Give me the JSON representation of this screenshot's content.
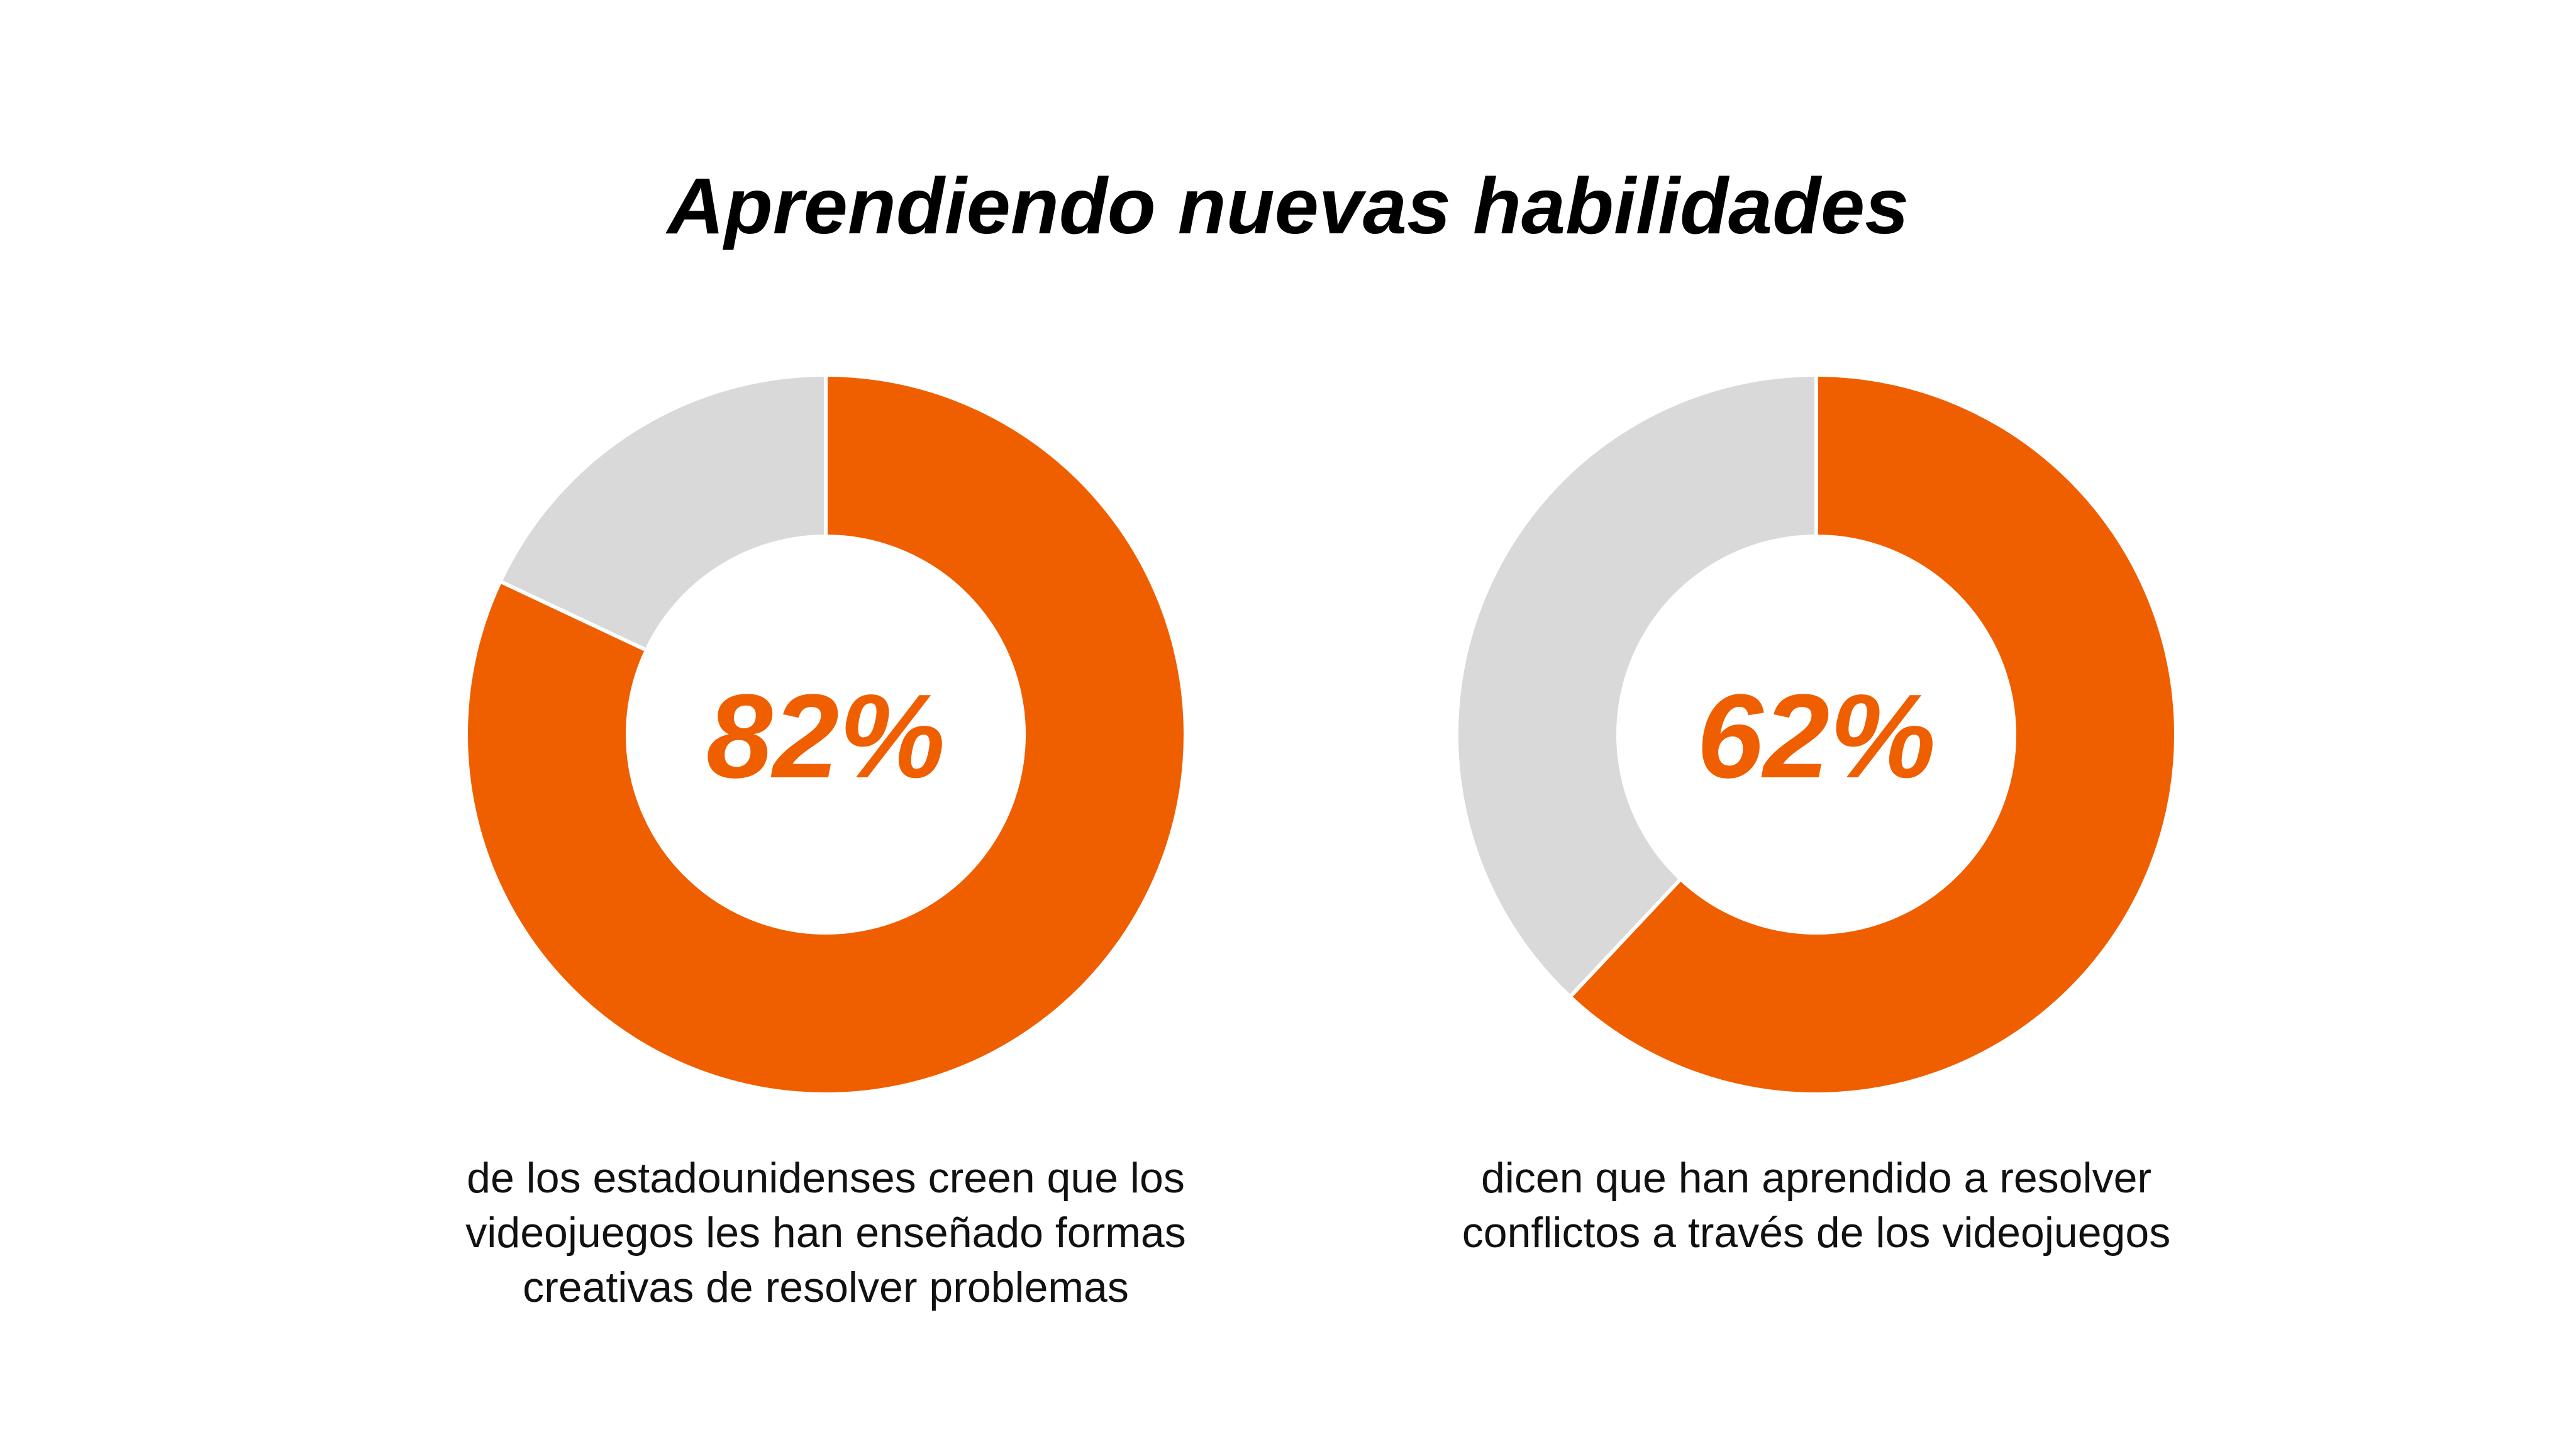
{
  "title": "Aprendiendo nuevas habilidades",
  "colors": {
    "highlight": "#EF5F00",
    "rest": "#D9D9D9"
  },
  "chart_data": [
    {
      "type": "pie",
      "variant": "donut",
      "center_label": "82%",
      "values": [
        82,
        18
      ],
      "caption": "de los estadounidenses creen que los videojuegos les han enseñado formas creativas de resolver problemas"
    },
    {
      "type": "pie",
      "variant": "donut",
      "center_label": "62%",
      "values": [
        62,
        38
      ],
      "caption": "dicen que han aprendido a resolver conflictos a través de los videojuegos"
    }
  ]
}
